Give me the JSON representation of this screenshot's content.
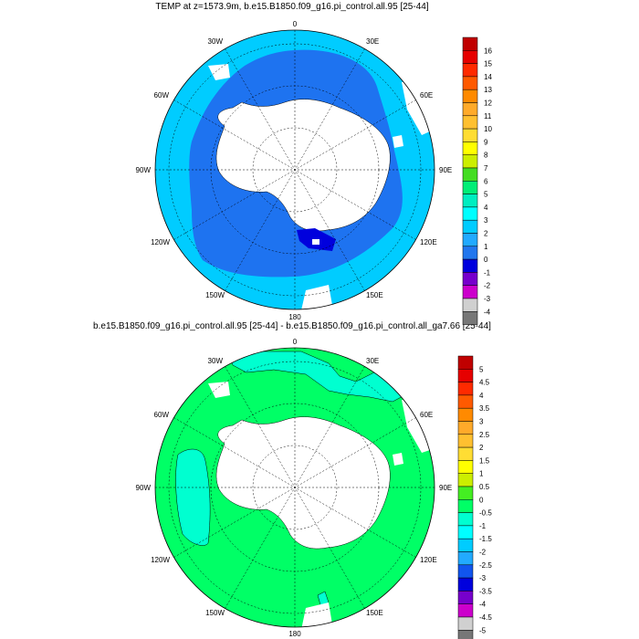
{
  "map1": {
    "title": "TEMP at z=1573.9m, b.e15.B1850.f09_g16.pi_control.all.95 [25-44]",
    "labels": {
      "top": "0",
      "bottom": "180",
      "left": "90W",
      "right": "90E",
      "ul1": "30W",
      "ul2": "60W",
      "ur1": "30E",
      "ur2": "60E",
      "ll1": "120W",
      "ll2": "150W",
      "lr1": "120E",
      "lr2": "150E"
    },
    "legend": {
      "ticks": [
        "16",
        "15",
        "14",
        "13",
        "12",
        "11",
        "10",
        "9",
        "8",
        "7",
        "6",
        "5",
        "4",
        "3",
        "2",
        "1",
        "0",
        "-1",
        "-2",
        "-3",
        "-4"
      ],
      "colors": [
        "#c00000",
        "#e60000",
        "#ff2a00",
        "#ff5a00",
        "#ff8a00",
        "#ffaa2a",
        "#ffc030",
        "#ffdd33",
        "#ffff00",
        "#ccee00",
        "#44dd22",
        "#00ee77",
        "#00eec0",
        "#00ffff",
        "#00ccff",
        "#22aaff",
        "#2277ee",
        "#0000dd",
        "#7700cc",
        "#cc00cc",
        "#d0d0d0",
        "#777777"
      ]
    },
    "colors": {
      "ocean_outer": "#00ccff",
      "ocean_inner": "#1e73f0",
      "ross": "#0000dd"
    }
  },
  "map2": {
    "title": "b.e15.B1850.f09_g16.pi_control.all.95 [25-44] - b.e15.B1850.f09_g16.pi_control.all_ga7.66 [25-44]",
    "labels": {
      "top": "0",
      "bottom": "180",
      "left": "90W",
      "right": "90E",
      "ul1": "30W",
      "ul2": "60W",
      "ur1": "30E",
      "ur2": "60E",
      "ll1": "120W",
      "ll2": "150W",
      "lr1": "120E",
      "lr2": "150E"
    },
    "legend": {
      "ticks": [
        "5",
        "4.5",
        "4",
        "3.5",
        "3",
        "2.5",
        "2",
        "1.5",
        "1",
        "0.5",
        "0",
        "-0.5",
        "-1",
        "-1.5",
        "-2",
        "-2.5",
        "-3",
        "-3.5",
        "-4",
        "-4.5",
        "-5"
      ],
      "colors": [
        "#c00000",
        "#e60000",
        "#ff2a00",
        "#ff5a00",
        "#ff8a00",
        "#ffaa2a",
        "#ffc030",
        "#ffdd33",
        "#ffff00",
        "#ccee00",
        "#44ee22",
        "#00ff66",
        "#00ffd0",
        "#00ffff",
        "#00ccff",
        "#22aaff",
        "#1155ee",
        "#0000dd",
        "#7700cc",
        "#cc00cc",
        "#d0d0d0",
        "#777777"
      ]
    },
    "colors": {
      "ocean": "#00ff66",
      "cyan": "#00ffd0"
    }
  }
}
